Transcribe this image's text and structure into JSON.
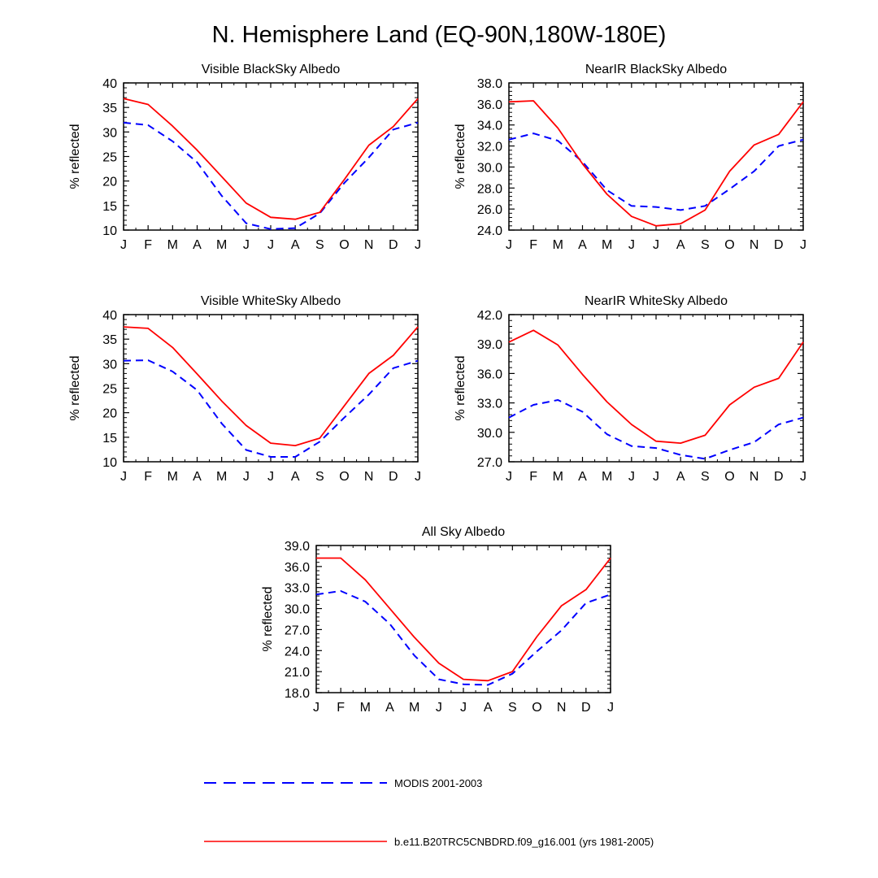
{
  "title": "N. Hemisphere Land (EQ-90N,180W-180E)",
  "colors": {
    "modis": "#0000ff",
    "model": "#ff0000",
    "axis": "#000000"
  },
  "legend": {
    "position": "bottom-center",
    "items": [
      {
        "key": "modis",
        "label": "MODIS 2001-2003",
        "style": "dashed"
      },
      {
        "key": "model",
        "label": "b.e11.B20TRC5CNBDRD.f09_g16.001 (yrs 1981-2005)",
        "style": "solid"
      }
    ]
  },
  "chart_data": [
    {
      "type": "line",
      "title": "Visible BlackSky Albedo",
      "ylabel": "% reflected",
      "xlabel": "",
      "categories": [
        "J",
        "F",
        "M",
        "A",
        "M",
        "J",
        "J",
        "A",
        "S",
        "O",
        "N",
        "D",
        "J"
      ],
      "ylim": [
        10,
        40
      ],
      "yticks": [
        "10",
        "15",
        "20",
        "25",
        "30",
        "35",
        "40"
      ],
      "series": [
        {
          "key": "model",
          "name": "b.e11.B20TRC5CNBDRD.f09_g16.001 (yrs 1981-2005)",
          "values": [
            36.8,
            35.6,
            31.2,
            26.3,
            20.9,
            15.5,
            12.6,
            12.2,
            13.6,
            20.3,
            27.3,
            31.1,
            36.8
          ]
        },
        {
          "key": "modis",
          "name": "MODIS 2001-2003",
          "values": [
            31.9,
            31.4,
            28.1,
            23.8,
            17.0,
            11.4,
            10.2,
            10.4,
            13.4,
            19.6,
            24.8,
            30.5,
            31.9
          ]
        }
      ]
    },
    {
      "type": "line",
      "title": "NearIR BlackSky Albedo",
      "ylabel": "% reflected",
      "xlabel": "",
      "categories": [
        "J",
        "F",
        "M",
        "A",
        "M",
        "J",
        "J",
        "A",
        "S",
        "O",
        "N",
        "D",
        "J"
      ],
      "ylim": [
        24,
        38
      ],
      "yticks": [
        "24.0",
        "26.0",
        "28.0",
        "30.0",
        "32.0",
        "34.0",
        "36.0",
        "38.0"
      ],
      "series": [
        {
          "key": "model",
          "name": "b.e11.B20TRC5CNBDRD.f09_g16.001 (yrs 1981-2005)",
          "values": [
            36.2,
            36.3,
            33.7,
            30.3,
            27.4,
            25.3,
            24.4,
            24.6,
            25.9,
            29.6,
            32.1,
            33.1,
            36.2
          ]
        },
        {
          "key": "modis",
          "name": "MODIS 2001-2003",
          "values": [
            32.6,
            33.2,
            32.5,
            30.5,
            27.8,
            26.3,
            26.2,
            25.9,
            26.3,
            27.9,
            29.6,
            32.0,
            32.6
          ]
        }
      ]
    },
    {
      "type": "line",
      "title": "Visible WhiteSky Albedo",
      "ylabel": "% reflected",
      "xlabel": "",
      "categories": [
        "J",
        "F",
        "M",
        "A",
        "M",
        "J",
        "J",
        "A",
        "S",
        "O",
        "N",
        "D",
        "J"
      ],
      "ylim": [
        10,
        40
      ],
      "yticks": [
        "10",
        "15",
        "20",
        "25",
        "30",
        "35",
        "40"
      ],
      "series": [
        {
          "key": "model",
          "name": "b.e11.B20TRC5CNBDRD.f09_g16.001 (yrs 1981-2005)",
          "values": [
            37.5,
            37.2,
            33.3,
            27.9,
            22.4,
            17.4,
            13.8,
            13.3,
            14.8,
            21.4,
            28.0,
            31.7,
            37.5
          ]
        },
        {
          "key": "modis",
          "name": "MODIS 2001-2003",
          "values": [
            30.6,
            30.7,
            28.4,
            24.6,
            17.8,
            12.4,
            11.0,
            11.0,
            14.1,
            19.0,
            23.7,
            29.1,
            30.6
          ]
        }
      ]
    },
    {
      "type": "line",
      "title": "NearIR WhiteSky Albedo",
      "ylabel": "% reflected",
      "xlabel": "",
      "categories": [
        "J",
        "F",
        "M",
        "A",
        "M",
        "J",
        "J",
        "A",
        "S",
        "O",
        "N",
        "D",
        "J"
      ],
      "ylim": [
        27,
        42
      ],
      "yticks": [
        "27.0",
        "30.0",
        "33.0",
        "36.0",
        "39.0",
        "42.0"
      ],
      "series": [
        {
          "key": "model",
          "name": "b.e11.B20TRC5CNBDRD.f09_g16.001 (yrs 1981-2005)",
          "values": [
            39.2,
            40.4,
            38.9,
            35.9,
            33.1,
            30.8,
            29.1,
            28.9,
            29.7,
            32.8,
            34.6,
            35.5,
            39.2
          ]
        },
        {
          "key": "modis",
          "name": "MODIS 2001-2003",
          "values": [
            31.5,
            32.8,
            33.3,
            32.1,
            29.8,
            28.6,
            28.4,
            27.7,
            27.3,
            28.2,
            29.0,
            30.8,
            31.5
          ]
        }
      ]
    },
    {
      "type": "line",
      "title": "All Sky Albedo",
      "ylabel": "% reflected",
      "xlabel": "",
      "categories": [
        "J",
        "F",
        "M",
        "A",
        "M",
        "J",
        "J",
        "A",
        "S",
        "O",
        "N",
        "D",
        "J"
      ],
      "ylim": [
        18,
        39
      ],
      "yticks": [
        "18.0",
        "21.0",
        "24.0",
        "27.0",
        "30.0",
        "33.0",
        "36.0",
        "39.0"
      ],
      "series": [
        {
          "key": "model",
          "name": "b.e11.B20TRC5CNBDRD.f09_g16.001 (yrs 1981-2005)",
          "values": [
            37.2,
            37.2,
            34.1,
            30.0,
            25.9,
            22.2,
            19.9,
            19.7,
            21.0,
            26.0,
            30.4,
            32.7,
            37.2
          ]
        },
        {
          "key": "modis",
          "name": "MODIS 2001-2003",
          "values": [
            32.0,
            32.5,
            31.0,
            27.8,
            23.3,
            19.9,
            19.2,
            19.1,
            20.7,
            23.9,
            26.9,
            30.8,
            32.0
          ]
        }
      ]
    }
  ]
}
